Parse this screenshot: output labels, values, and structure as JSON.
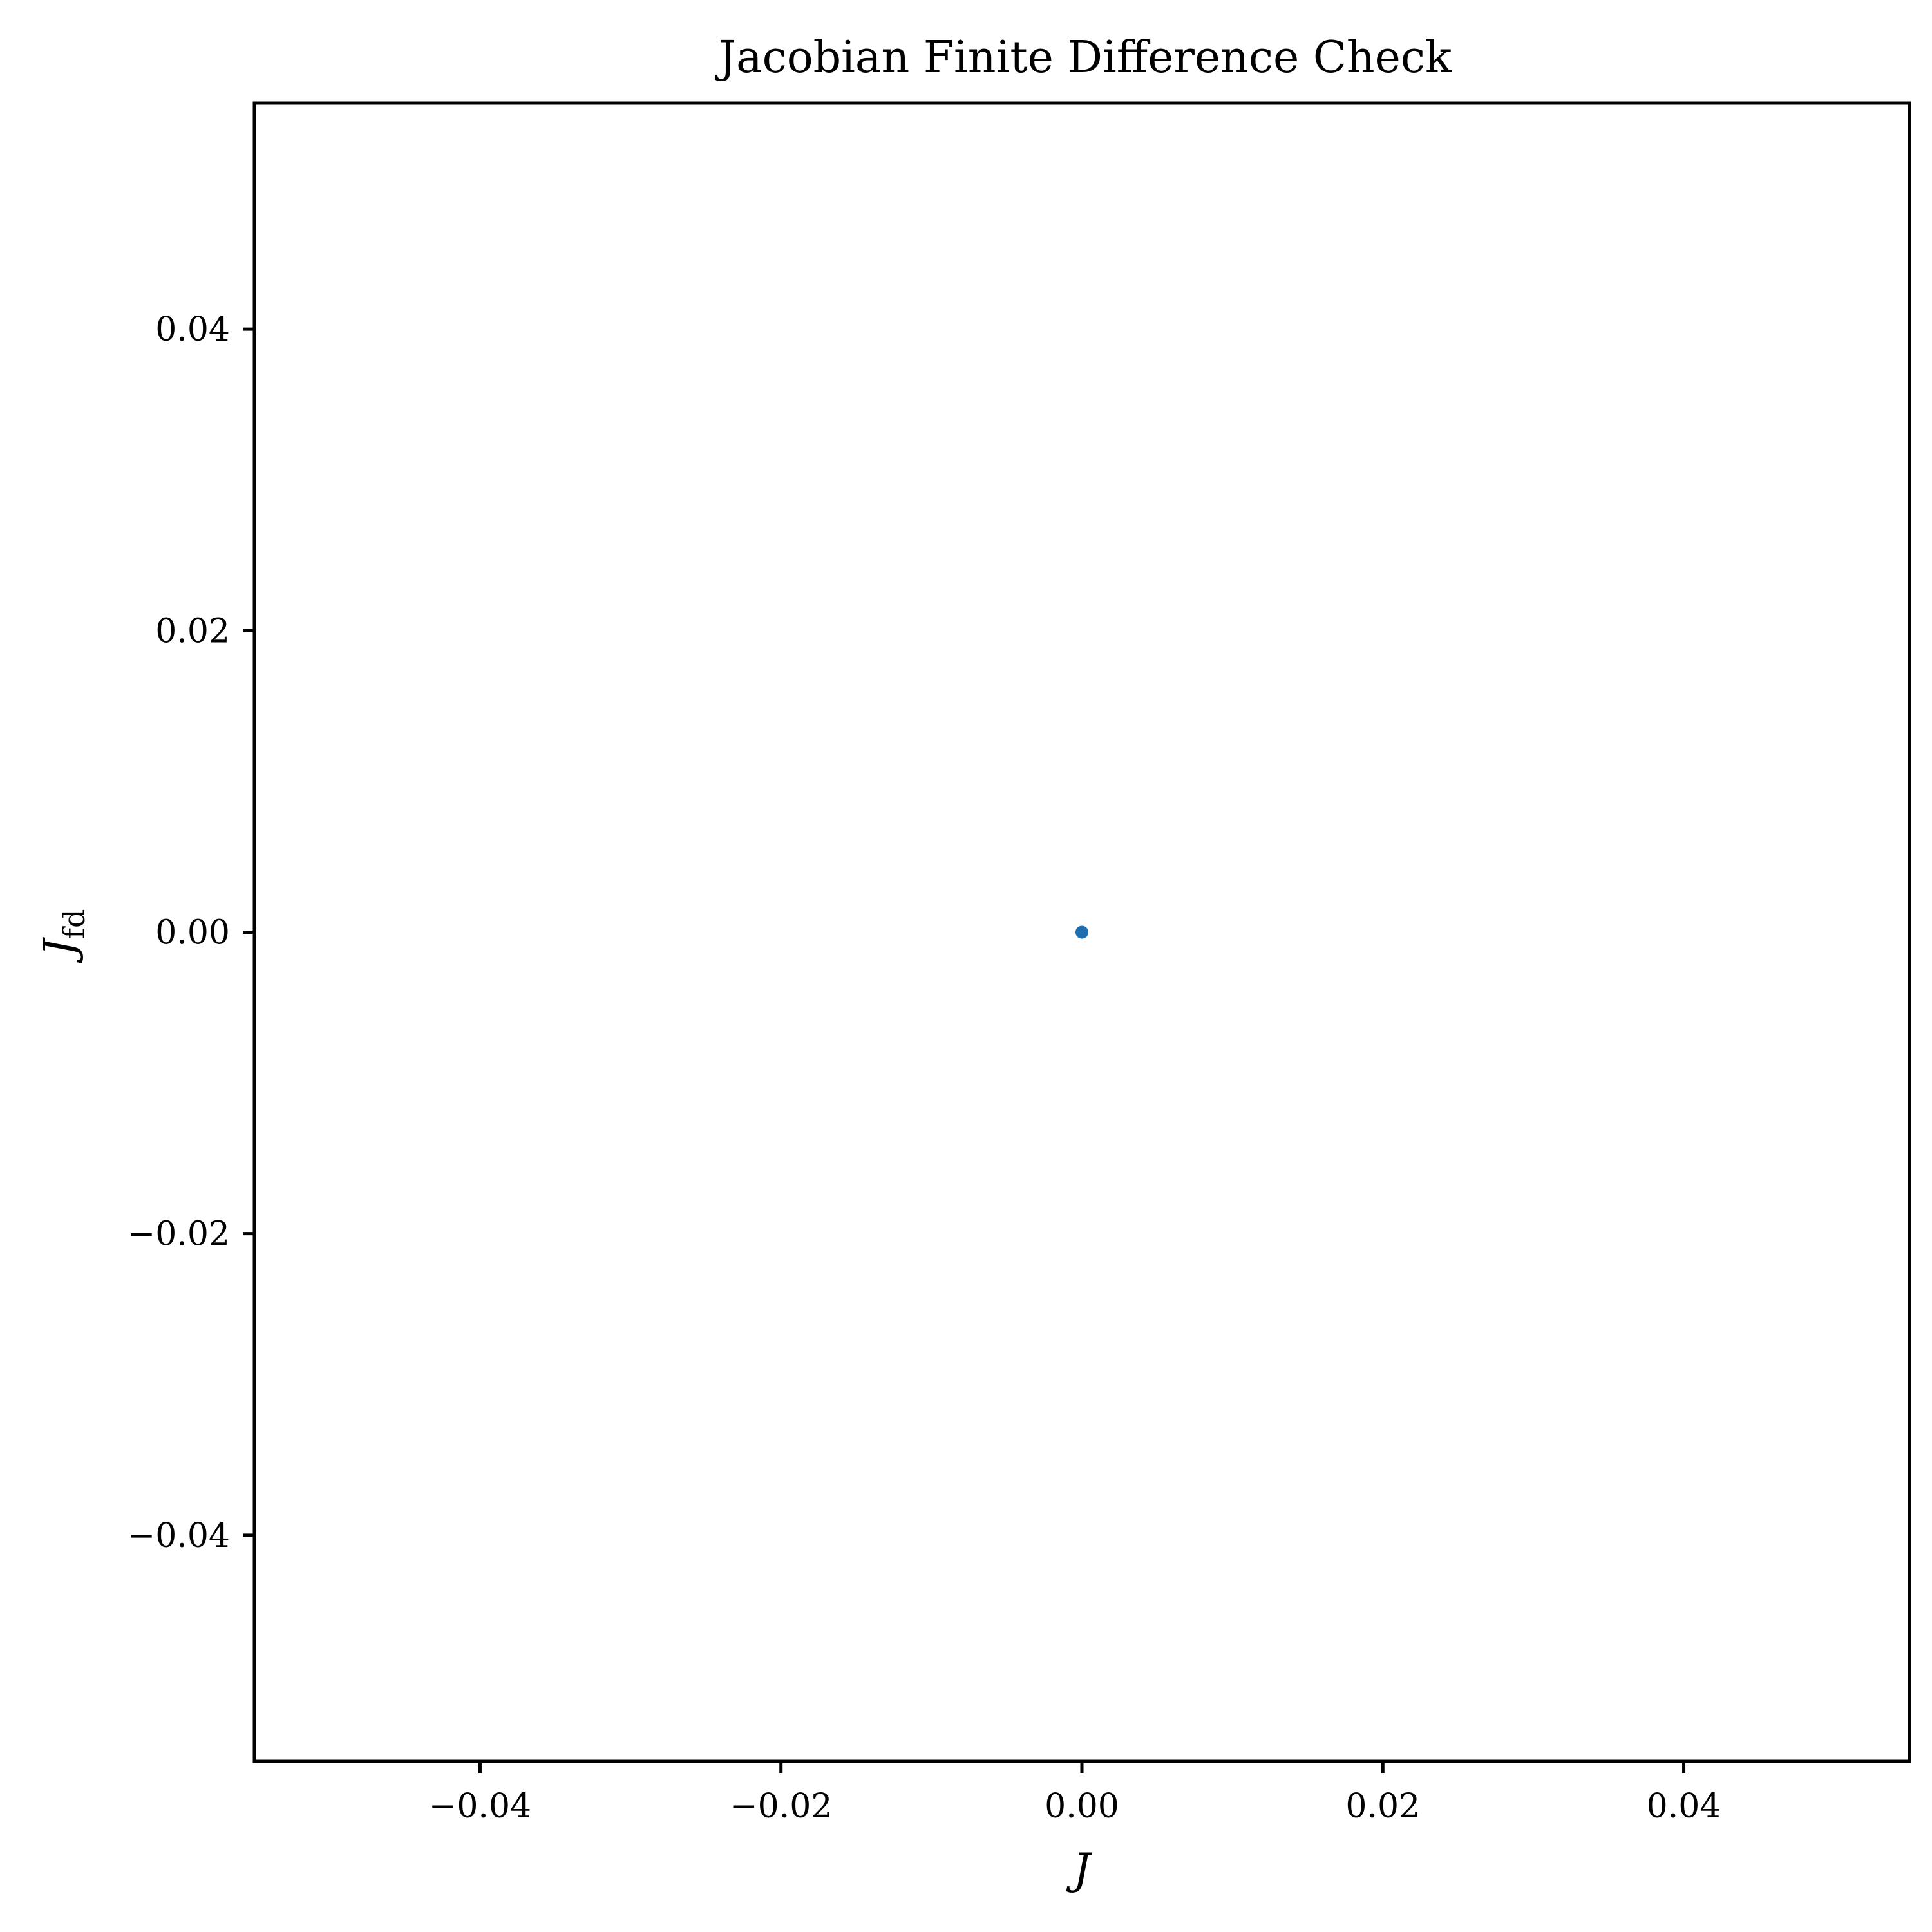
{
  "chart_data": {
    "type": "scatter",
    "title": "Jacobian Finite Difference Check",
    "xlabel": "J",
    "ylabel": "J",
    "ylabel_subscript": "fd",
    "xlim": [
      -0.055,
      0.055
    ],
    "ylim": [
      -0.055,
      0.055
    ],
    "x_ticks": [
      -0.04,
      -0.02,
      0.0,
      0.02,
      0.04
    ],
    "x_tick_labels": [
      "−0.04",
      "−0.02",
      "0.00",
      "0.02",
      "0.04"
    ],
    "y_ticks": [
      -0.04,
      -0.02,
      0.0,
      0.02,
      0.04
    ],
    "y_tick_labels": [
      "−0.04",
      "−0.02",
      "0.00",
      "0.02",
      "0.04"
    ],
    "grid": false,
    "points": [
      {
        "x": 0.0,
        "y": 0.0
      }
    ],
    "colors": {
      "marker": "#1f6fb0",
      "axes": "#000000"
    }
  }
}
